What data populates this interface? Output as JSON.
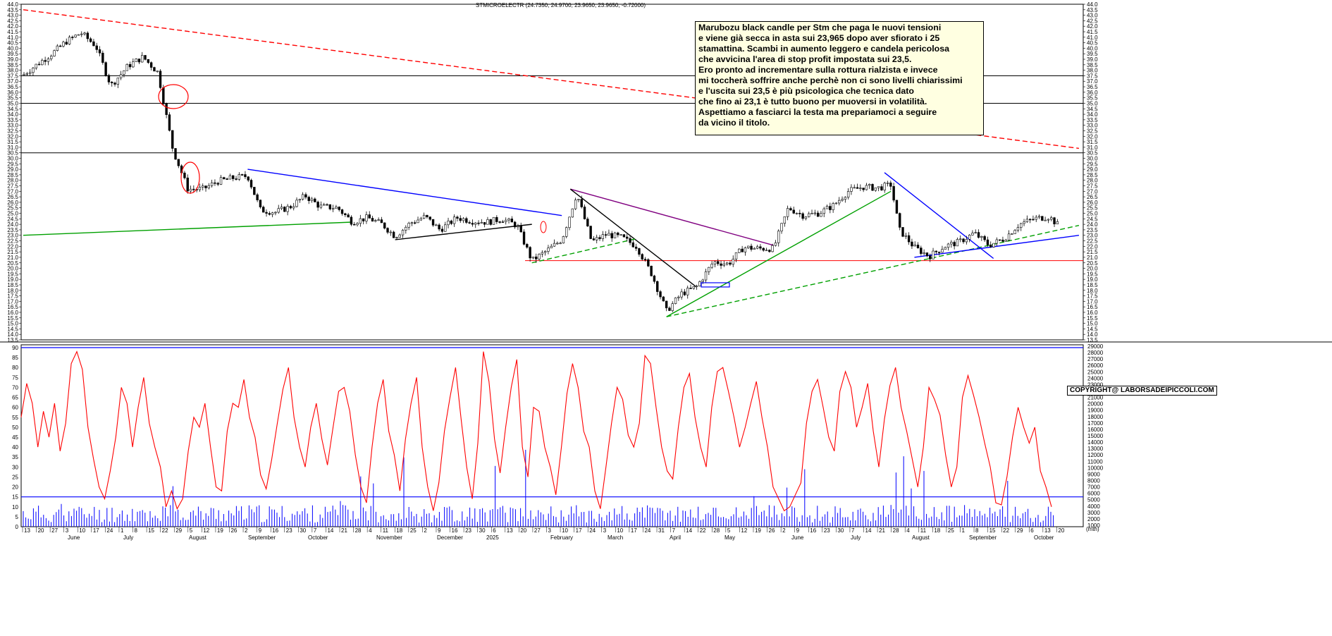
{
  "chart_data": [
    {
      "type": "candlestick",
      "title": "STMICROELECTR (24.7350, 24.9700, 23.9650, 23.9650, -0.72000)",
      "y_axis": {
        "min": 13.5,
        "max": 44.0,
        "step": 0.5,
        "position": "left and right"
      },
      "x_month_labels": [
        "June",
        "July",
        "August",
        "September",
        "October",
        "November",
        "December",
        "2025",
        "February",
        "March",
        "April",
        "May",
        "June",
        "July",
        "August",
        "September",
        "October"
      ],
      "x_day_labels": [
        "13",
        "20",
        "27",
        "3",
        "10",
        "17",
        "24",
        "1",
        "8",
        "15",
        "22",
        "29",
        "5",
        "12",
        "19",
        "26",
        "2",
        "9",
        "16",
        "23",
        "30",
        "7",
        "14",
        "21",
        "28",
        "4",
        "11",
        "18",
        "25",
        "2",
        "9",
        "16",
        "23",
        "30",
        "6",
        "13",
        "20",
        "27",
        "3",
        "10",
        "17",
        "24",
        "3",
        "10",
        "17",
        "24",
        "31",
        "7",
        "14",
        "22",
        "28",
        "5",
        "12",
        "19",
        "26",
        "2",
        "9",
        "16",
        "23",
        "30",
        "7",
        "14",
        "21",
        "28",
        "4",
        "11",
        "18",
        "25",
        "1",
        "8",
        "15",
        "22",
        "29",
        "6",
        "13",
        "20"
      ],
      "approx_close_path": [
        {
          "date": "2024-06-13",
          "close": 37.6
        },
        {
          "date": "2024-06-20",
          "close": 38.6
        },
        {
          "date": "2024-06-27",
          "close": 39.6
        },
        {
          "date": "2024-07-03",
          "close": 40.6
        },
        {
          "date": "2024-07-10",
          "close": 41.4
        },
        {
          "date": "2024-07-17",
          "close": 40.2
        },
        {
          "date": "2024-07-24",
          "close": 36.6
        },
        {
          "date": "2024-08-01",
          "close": 38.4
        },
        {
          "date": "2024-08-08",
          "close": 39.2
        },
        {
          "date": "2024-08-15",
          "close": 37.8
        },
        {
          "date": "2024-08-22",
          "close": 30.8
        },
        {
          "date": "2024-08-29",
          "close": 27.2
        },
        {
          "date": "2024-09-05",
          "close": 27.2
        },
        {
          "date": "2024-09-12",
          "close": 27.9
        },
        {
          "date": "2024-09-19",
          "close": 28.2
        },
        {
          "date": "2024-09-26",
          "close": 28.4
        },
        {
          "date": "2024-10-02",
          "close": 25.3
        },
        {
          "date": "2024-10-09",
          "close": 25.1
        },
        {
          "date": "2024-10-16",
          "close": 25.6
        },
        {
          "date": "2024-10-23",
          "close": 26.6
        },
        {
          "date": "2024-10-30",
          "close": 25.6
        },
        {
          "date": "2024-11-07",
          "close": 25.5
        },
        {
          "date": "2024-11-14",
          "close": 24.2
        },
        {
          "date": "2024-11-21",
          "close": 24.6
        },
        {
          "date": "2024-11-28",
          "close": 24.0
        },
        {
          "date": "2024-12-04",
          "close": 22.9
        },
        {
          "date": "2024-12-11",
          "close": 24.1
        },
        {
          "date": "2024-12-18",
          "close": 24.7
        },
        {
          "date": "2024-12-25",
          "close": 23.5
        },
        {
          "date": "2025-01-02",
          "close": 24.6
        },
        {
          "date": "2025-01-09",
          "close": 24.3
        },
        {
          "date": "2025-01-16",
          "close": 24.2
        },
        {
          "date": "2025-01-23",
          "close": 24.5
        },
        {
          "date": "2025-01-30",
          "close": 23.9
        },
        {
          "date": "2025-02-06",
          "close": 20.7
        },
        {
          "date": "2025-02-13",
          "close": 21.6
        },
        {
          "date": "2025-02-20",
          "close": 22.6
        },
        {
          "date": "2025-02-27",
          "close": 26.8
        },
        {
          "date": "2025-03-06",
          "close": 22.4
        },
        {
          "date": "2025-03-13",
          "close": 23.1
        },
        {
          "date": "2025-03-20",
          "close": 22.8
        },
        {
          "date": "2025-03-27",
          "close": 22.0
        },
        {
          "date": "2025-04-03",
          "close": 19.5
        },
        {
          "date": "2025-04-10",
          "close": 16.1
        },
        {
          "date": "2025-04-17",
          "close": 17.7
        },
        {
          "date": "2025-04-24",
          "close": 18.3
        },
        {
          "date": "2025-05-02",
          "close": 20.6
        },
        {
          "date": "2025-05-09",
          "close": 20.4
        },
        {
          "date": "2025-05-16",
          "close": 21.9
        },
        {
          "date": "2025-05-23",
          "close": 21.8
        },
        {
          "date": "2025-05-30",
          "close": 21.8
        },
        {
          "date": "2025-06-06",
          "close": 25.5
        },
        {
          "date": "2025-06-13",
          "close": 24.8
        },
        {
          "date": "2025-06-20",
          "close": 25.0
        },
        {
          "date": "2025-06-27",
          "close": 25.7
        },
        {
          "date": "2025-07-04",
          "close": 27.0
        },
        {
          "date": "2025-07-11",
          "close": 27.4
        },
        {
          "date": "2025-07-18",
          "close": 27.3
        },
        {
          "date": "2025-07-24",
          "close": 27.6
        },
        {
          "date": "2025-07-28",
          "close": 23.5
        },
        {
          "date": "2025-08-04",
          "close": 21.9
        },
        {
          "date": "2025-08-11",
          "close": 21.1
        },
        {
          "date": "2025-08-18",
          "close": 22.0
        },
        {
          "date": "2025-08-25",
          "close": 22.4
        },
        {
          "date": "2025-09-01",
          "close": 23.2
        },
        {
          "date": "2025-09-08",
          "close": 22.1
        },
        {
          "date": "2025-09-15",
          "close": 22.7
        },
        {
          "date": "2025-09-22",
          "close": 24.0
        },
        {
          "date": "2025-09-29",
          "close": 24.5
        },
        {
          "date": "2025-10-06",
          "close": 24.7
        },
        {
          "date": "2025-10-10",
          "close": 23.97
        }
      ],
      "horizontal_levels": [
        {
          "y": 37.5,
          "color": "#000000"
        },
        {
          "y": 35.0,
          "color": "#000000"
        },
        {
          "y": 30.5,
          "color": "#000000"
        },
        {
          "y": 20.7,
          "color": "#ff0000"
        }
      ],
      "annotation_lines": [
        {
          "from": {
            "date": "2024-06-13",
            "y": 43.5
          },
          "to": {
            "date": "2025-10-20",
            "y": 30.9
          },
          "color": "#ff0000",
          "dashed": true
        },
        {
          "from": {
            "date": "2024-06-13",
            "y": 23.0
          },
          "to": {
            "date": "2024-11-14",
            "y": 24.2
          },
          "color": "#00a000",
          "dashed": false
        },
        {
          "from": {
            "date": "2024-09-26",
            "y": 29.0
          },
          "to": {
            "date": "2025-02-20",
            "y": 24.8
          },
          "color": "#0000ff",
          "dashed": false
        },
        {
          "from": {
            "date": "2025-02-24",
            "y": 27.2
          },
          "to": {
            "date": "2025-05-30",
            "y": 22.1
          },
          "color": "#800080",
          "dashed": false
        },
        {
          "from": {
            "date": "2025-02-24",
            "y": 27.2
          },
          "to": {
            "date": "2025-04-24",
            "y": 18.3
          },
          "color": "#000000",
          "dashed": false
        },
        {
          "from": {
            "date": "2025-04-10",
            "y": 15.6
          },
          "to": {
            "date": "2025-07-24",
            "y": 27.0
          },
          "color": "#00a000",
          "dashed": false
        },
        {
          "from": {
            "date": "2025-04-10",
            "y": 15.6
          },
          "to": {
            "date": "2025-10-20",
            "y": 23.9
          },
          "color": "#00a000",
          "dashed": true
        },
        {
          "from": {
            "date": "2025-07-21",
            "y": 28.7
          },
          "to": {
            "date": "2025-09-10",
            "y": 20.9
          },
          "color": "#0000ff",
          "dashed": false
        },
        {
          "from": {
            "date": "2025-08-04",
            "y": 21.0
          },
          "to": {
            "date": "2025-10-20",
            "y": 23.0
          },
          "color": "#0000ff",
          "dashed": false
        },
        {
          "from": {
            "date": "2025-02-06",
            "y": 20.5
          },
          "to": {
            "date": "2025-03-27",
            "y": 22.7
          },
          "color": "#00a000",
          "dashed": true
        },
        {
          "from": {
            "date": "2024-12-04",
            "y": 22.6
          },
          "to": {
            "date": "2025-02-06",
            "y": 24.0
          },
          "color": "#000000",
          "dashed": false
        }
      ]
    },
    {
      "type": "line+bar",
      "series": [
        {
          "name": "",
          "kind": "line",
          "color": "#ff0000"
        },
        {
          "name": "",
          "kind": "bar",
          "color": "#0000ff"
        }
      ],
      "left_axis": {
        "min": 0,
        "max": 90,
        "ticks": [
          0,
          5,
          10,
          15,
          20,
          25,
          30,
          35,
          40,
          45,
          50,
          55,
          60,
          65,
          70,
          75,
          80,
          85,
          90
        ]
      },
      "right_axis": {
        "min": 1000,
        "max": 29000,
        "ticks": [
          1000,
          2000,
          3000,
          4000,
          5000,
          6000,
          7000,
          8000,
          9000,
          10000,
          11000,
          12000,
          13000,
          14000,
          15000,
          16000,
          17000,
          18000,
          19000,
          20000,
          21000,
          22000,
          23000,
          24000,
          25000,
          26000,
          27000,
          28000,
          29000
        ]
      },
      "reference_levels": [
        90,
        15
      ],
      "oscillator_path": [
        55,
        72,
        62,
        40,
        58,
        45,
        62,
        38,
        52,
        82,
        88,
        79,
        50,
        34,
        20,
        14,
        28,
        45,
        70,
        62,
        40,
        60,
        75,
        52,
        40,
        30,
        10,
        18,
        9,
        14,
        38,
        55,
        50,
        62,
        40,
        20,
        18,
        48,
        62,
        60,
        74,
        55,
        45,
        26,
        19,
        34,
        52,
        69,
        80,
        55,
        40,
        30,
        50,
        62,
        44,
        31,
        50,
        68,
        70,
        58,
        36,
        20,
        12,
        40,
        62,
        74,
        48,
        36,
        18,
        44,
        62,
        75,
        40,
        20,
        8,
        22,
        48,
        65,
        80,
        54,
        30,
        14,
        42,
        88,
        73,
        44,
        27,
        50,
        70,
        84,
        40,
        25,
        60,
        58,
        40,
        30,
        16,
        40,
        67,
        82,
        70,
        48,
        40,
        18,
        9,
        30,
        52,
        70,
        64,
        46,
        40,
        52,
        86,
        82,
        60,
        40,
        28,
        24,
        50,
        70,
        77,
        55,
        40,
        30,
        60,
        78,
        80,
        68,
        55,
        40,
        50,
        62,
        73,
        55,
        40,
        20,
        14,
        8,
        10,
        16,
        22,
        52,
        68,
        74,
        60,
        45,
        38,
        68,
        78,
        70,
        50,
        60,
        72,
        48,
        30,
        54,
        71,
        80,
        60,
        48,
        34,
        20,
        40,
        70,
        64,
        56,
        36,
        20,
        30,
        65,
        76,
        66,
        55,
        42,
        30,
        12,
        11,
        25,
        45,
        60,
        50,
        42,
        50,
        28,
        20,
        10
      ]
    }
  ],
  "note_lines": [
    "Marubozu black candle per Stm che paga le nuovi tensioni",
    "e viene già secca in asta sui 23,965 dopo aver sfiorato i 25",
    "stamattina. Scambi in aumento leggero e candela pericolosa",
    "che avvicina l'area di stop profit impostata sui 23,5.",
    "Ero pronto ad incrementare sulla rottura rialzista e invece",
    "mi toccherà soffrire anche perchè non ci sono livelli chiarissimi",
    "e l'uscita sui 23,5 è più psicologica che tecnica dato",
    "che fino ai 23,1 è tutto buono per muoversi in volatilità.",
    "Aspettiamo a fasciarci la testa ma prepariamoci a seguire",
    "da vicino il titolo."
  ],
  "copyright": "COPYRIGHT@ LABORSADEIPICCOLI.COM",
  "y_corner_label": "(mth)"
}
